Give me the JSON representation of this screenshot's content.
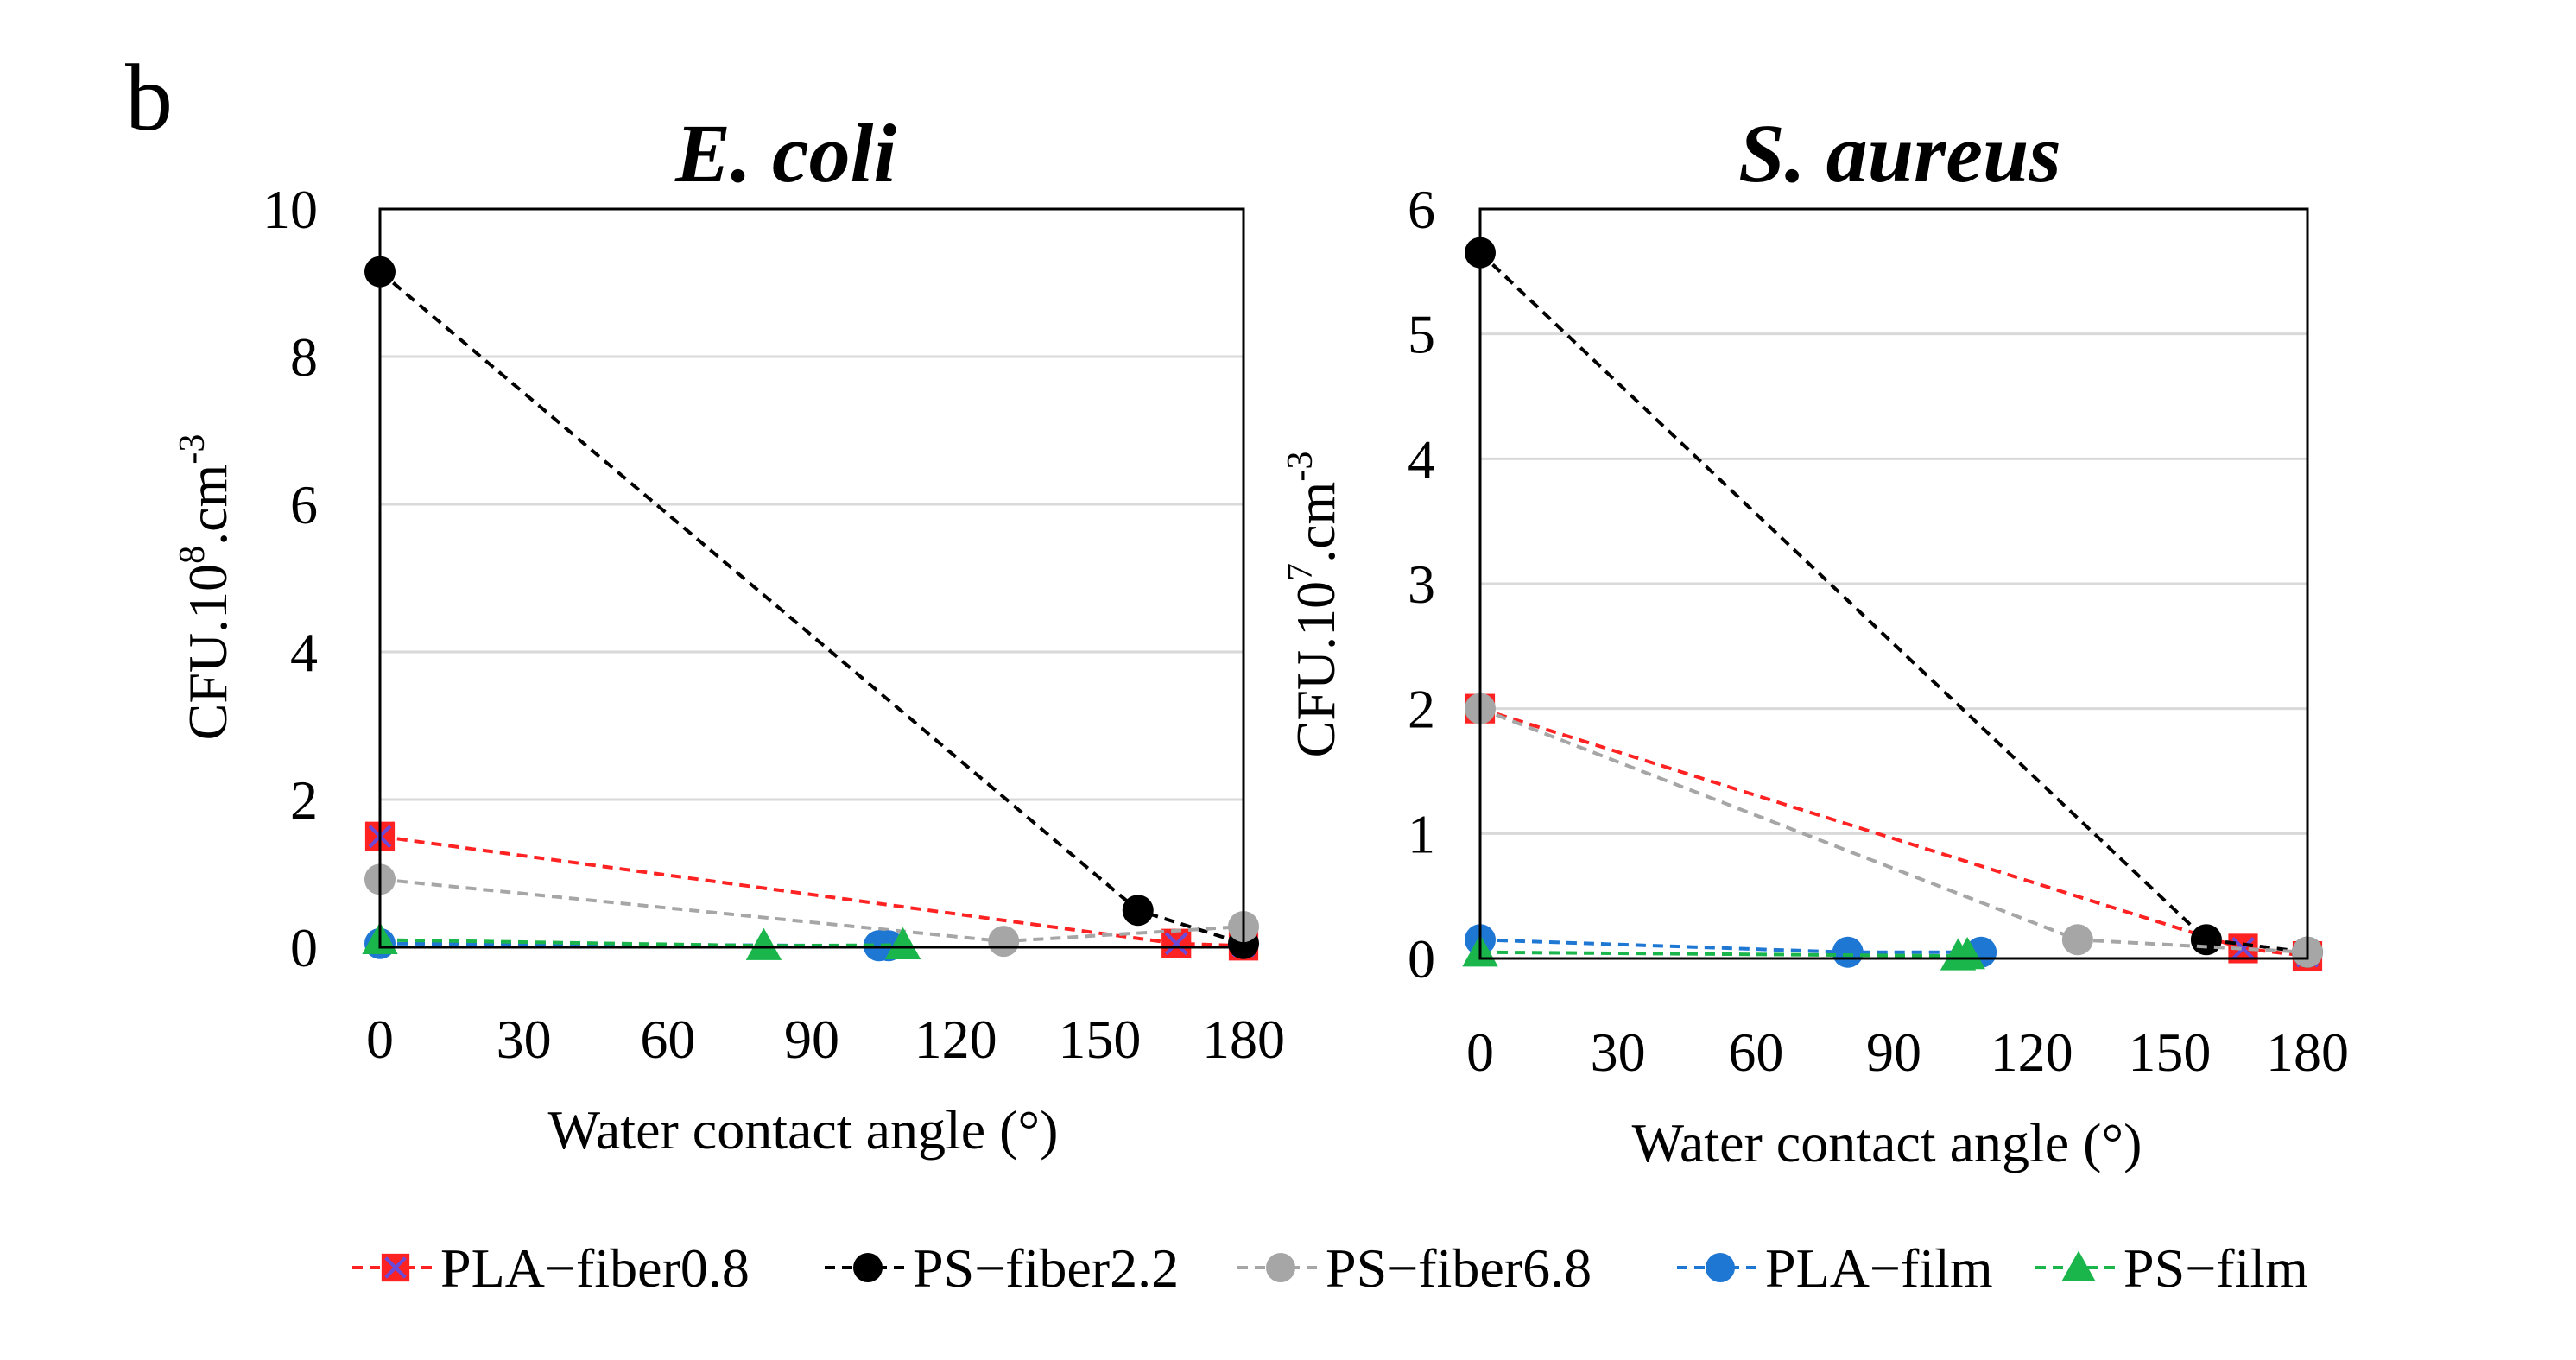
{
  "figure": {
    "panel_label": "b"
  },
  "series_styles": [
    {
      "name": "PLA−fiber0.8",
      "color": "#ff2222",
      "marker": "square-x",
      "marker_color": "#ff2222",
      "marker_cross": "#6a4ad8"
    },
    {
      "name": "PS−fiber2.2",
      "color": "#000000",
      "marker": "circle",
      "marker_color": "#000000"
    },
    {
      "name": "PS−fiber6.8",
      "color": "#a6a6a6",
      "marker": "circle",
      "marker_color": "#a6a6a6"
    },
    {
      "name": "PLA−film",
      "color": "#1f77d4",
      "marker": "circle",
      "marker_color": "#1f77d4"
    },
    {
      "name": "PS−film",
      "color": "#1ab64b",
      "marker": "triangle",
      "marker_color": "#1ab64b"
    }
  ],
  "chart_data": [
    {
      "type": "scatter",
      "title": "E. coli",
      "xlabel": "Water contact angle (°)",
      "ylabel_parts": {
        "base": "CFU.10",
        "exp": "8",
        "mid": ".cm",
        "exp2": "-3"
      },
      "xlim": [
        0,
        180
      ],
      "ylim": [
        0,
        10
      ],
      "xticks": [
        0,
        30,
        60,
        90,
        120,
        150,
        180
      ],
      "yticks": [
        0,
        2,
        4,
        6,
        8,
        10
      ],
      "grid": true,
      "series": [
        {
          "name": "PLA−fiber0.8",
          "points": [
            [
              0,
              1.5
            ],
            [
              166,
              0.05
            ],
            [
              180,
              0.02
            ]
          ]
        },
        {
          "name": "PS−fiber2.2",
          "points": [
            [
              0,
              9.15
            ],
            [
              158,
              0.5
            ],
            [
              180,
              0.05
            ]
          ]
        },
        {
          "name": "PS−fiber6.8",
          "points": [
            [
              0,
              0.92
            ],
            [
              130,
              0.08
            ],
            [
              180,
              0.28
            ]
          ]
        },
        {
          "name": "PLA−film",
          "points": [
            [
              0,
              0.05
            ],
            [
              104,
              0.02
            ],
            [
              106,
              0.02
            ]
          ]
        },
        {
          "name": "PS−film",
          "points": [
            [
              0,
              0.1
            ],
            [
              80,
              0.02
            ],
            [
              109,
              0.03
            ]
          ]
        }
      ]
    },
    {
      "type": "scatter",
      "title": "S. aureus",
      "xlabel": "Water contact angle (°)",
      "ylabel_parts": {
        "base": "CFU.10",
        "exp": "7",
        "mid": ".cm",
        "exp2": "-3"
      },
      "xlim": [
        0,
        180
      ],
      "ylim": [
        0,
        6
      ],
      "xticks": [
        0,
        30,
        60,
        90,
        120,
        150,
        180
      ],
      "yticks": [
        0,
        1,
        2,
        3,
        4,
        5,
        6
      ],
      "grid": true,
      "series": [
        {
          "name": "PLA−fiber0.8",
          "points": [
            [
              0,
              2.0
            ],
            [
              166,
              0.08
            ],
            [
              180,
              0.02
            ]
          ]
        },
        {
          "name": "PS−fiber2.2",
          "points": [
            [
              0,
              5.65
            ],
            [
              158,
              0.15
            ],
            [
              180,
              0.05
            ]
          ]
        },
        {
          "name": "PS−fiber6.8",
          "points": [
            [
              0,
              2.0
            ],
            [
              130,
              0.15
            ],
            [
              180,
              0.05
            ]
          ]
        },
        {
          "name": "PLA−film",
          "points": [
            [
              0,
              0.15
            ],
            [
              80,
              0.05
            ],
            [
              109,
              0.05
            ]
          ]
        },
        {
          "name": "PS−film",
          "points": [
            [
              0,
              0.05
            ],
            [
              104,
              0.02
            ],
            [
              106,
              0.03
            ]
          ]
        }
      ]
    }
  ],
  "legend": {
    "position": "bottom",
    "items": [
      "PLA−fiber0.8",
      "PS−fiber2.2",
      "PS−fiber6.8",
      "PLA−film",
      "PS−film"
    ]
  }
}
